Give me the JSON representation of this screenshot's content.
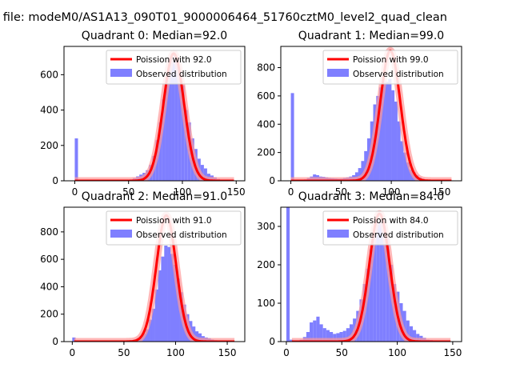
{
  "figure_title": "n file: modeM0/AS1A13_090T01_9000006464_51760cztM0_level2_quad_clean",
  "colors": {
    "hist": "#7f7fff",
    "fit": "#ff0000",
    "fit_glow": "#ff9999"
  },
  "chart_data": [
    {
      "type": "bar",
      "title": "Quadrant 0: Median=92.0",
      "xlim": [
        -10,
        158
      ],
      "ylim": [
        0,
        760
      ],
      "xticks": [
        0,
        50,
        100,
        150
      ],
      "yticks": [
        0,
        200,
        400,
        600
      ],
      "legend": {
        "placement": "top-right",
        "entries": [
          "Poission with 92.0",
          "Observed distribution"
        ]
      },
      "bin_width": 3,
      "series": [
        {
          "name": "Observed distribution",
          "x": [
            0,
            45,
            48,
            51,
            54,
            57,
            60,
            63,
            66,
            69,
            72,
            75,
            78,
            81,
            84,
            87,
            90,
            93,
            96,
            99,
            102,
            105,
            108,
            111,
            114,
            117,
            120,
            123,
            126,
            129,
            132,
            135,
            138,
            141,
            144
          ],
          "values": [
            240,
            3,
            5,
            8,
            15,
            25,
            35,
            45,
            60,
            90,
            140,
            230,
            330,
            460,
            580,
            690,
            720,
            680,
            620,
            540,
            400,
            330,
            240,
            180,
            125,
            90,
            70,
            40,
            30,
            20,
            10,
            5,
            3,
            2,
            1
          ]
        },
        {
          "name": "Poission with 92.0",
          "mean": 92.0,
          "peak": 720
        }
      ]
    },
    {
      "type": "bar",
      "title": "Quadrant 1: Median=99.0",
      "xlim": [
        -10,
        170
      ],
      "ylim": [
        0,
        950
      ],
      "xticks": [
        0,
        50,
        100,
        150
      ],
      "yticks": [
        0,
        200,
        400,
        600,
        800
      ],
      "legend": {
        "placement": "top-right",
        "entries": [
          "Poission with 99.0",
          "Observed distribution"
        ]
      },
      "bin_width": 3.2,
      "series": [
        {
          "name": "Observed distribution",
          "x": [
            0,
            10,
            13,
            16,
            19,
            22,
            25,
            28,
            31,
            34,
            37,
            40,
            43,
            46,
            49,
            52,
            55,
            58,
            61,
            64,
            67,
            70,
            73,
            76,
            79,
            82,
            85,
            88,
            91,
            94,
            97,
            100,
            103,
            106,
            109,
            112,
            115,
            118,
            121,
            124,
            127,
            130,
            133,
            136,
            139,
            142
          ],
          "values": [
            620,
            5,
            10,
            20,
            30,
            45,
            40,
            30,
            28,
            25,
            20,
            18,
            16,
            14,
            15,
            20,
            25,
            30,
            40,
            60,
            90,
            140,
            210,
            300,
            420,
            540,
            600,
            660,
            700,
            700,
            720,
            640,
            560,
            420,
            280,
            200,
            130,
            80,
            60,
            40,
            25,
            15,
            8,
            5,
            3,
            2
          ]
        },
        {
          "name": "Poission with 99.0",
          "mean": 99.0,
          "peak": 920
        }
      ]
    },
    {
      "type": "bar",
      "title": "Quadrant 2: Median=91.0",
      "xlim": [
        -8,
        167
      ],
      "ylim": [
        0,
        980
      ],
      "xticks": [
        0,
        50,
        100,
        150
      ],
      "yticks": [
        0,
        200,
        400,
        600,
        800
      ],
      "legend": {
        "placement": "top-right",
        "entries": [
          "Poission with 91.0",
          "Observed distribution"
        ]
      },
      "bin_width": 3.2,
      "series": [
        {
          "name": "Observed distribution",
          "x": [
            0,
            50,
            53,
            56,
            59,
            62,
            65,
            68,
            71,
            74,
            77,
            80,
            83,
            86,
            89,
            92,
            95,
            98,
            101,
            104,
            107,
            110,
            113,
            116,
            119,
            122,
            125,
            128,
            131,
            134,
            137,
            140,
            143,
            146
          ],
          "values": [
            30,
            3,
            5,
            10,
            15,
            25,
            40,
            60,
            90,
            160,
            240,
            380,
            520,
            620,
            700,
            690,
            640,
            560,
            460,
            360,
            270,
            200,
            150,
            110,
            75,
            60,
            40,
            30,
            25,
            15,
            10,
            5,
            3,
            2
          ]
        },
        {
          "name": "Poission with 91.0",
          "mean": 91.0,
          "peak": 920
        }
      ]
    },
    {
      "type": "bar",
      "title": "Quadrant 3: Median=84.0",
      "xlim": [
        -5,
        158
      ],
      "ylim": [
        0,
        350
      ],
      "xticks": [
        0,
        50,
        100,
        150
      ],
      "yticks": [
        0,
        100,
        200,
        300
      ],
      "legend": {
        "placement": "top-right",
        "entries": [
          "Poission with 84.0",
          "Observed distribution"
        ]
      },
      "bin_width": 3,
      "series": [
        {
          "name": "Observed distribution",
          "x": [
            0,
            3,
            6,
            9,
            12,
            15,
            18,
            21,
            24,
            27,
            30,
            33,
            36,
            39,
            42,
            45,
            48,
            51,
            54,
            57,
            60,
            63,
            66,
            69,
            72,
            75,
            78,
            81,
            84,
            87,
            90,
            93,
            96,
            99,
            102,
            105,
            108,
            111,
            114,
            117,
            120,
            123,
            126,
            129,
            132,
            135,
            138,
            141
          ],
          "values": [
            350,
            5,
            3,
            3,
            5,
            12,
            25,
            50,
            55,
            65,
            45,
            35,
            30,
            25,
            20,
            22,
            25,
            28,
            35,
            45,
            60,
            80,
            110,
            150,
            190,
            240,
            280,
            310,
            315,
            290,
            270,
            200,
            150,
            130,
            100,
            80,
            55,
            40,
            30,
            20,
            15,
            10,
            5,
            4,
            3,
            2,
            1,
            1
          ]
        },
        {
          "name": "Poission with 84.0",
          "mean": 84.0,
          "peak": 333
        }
      ]
    }
  ]
}
